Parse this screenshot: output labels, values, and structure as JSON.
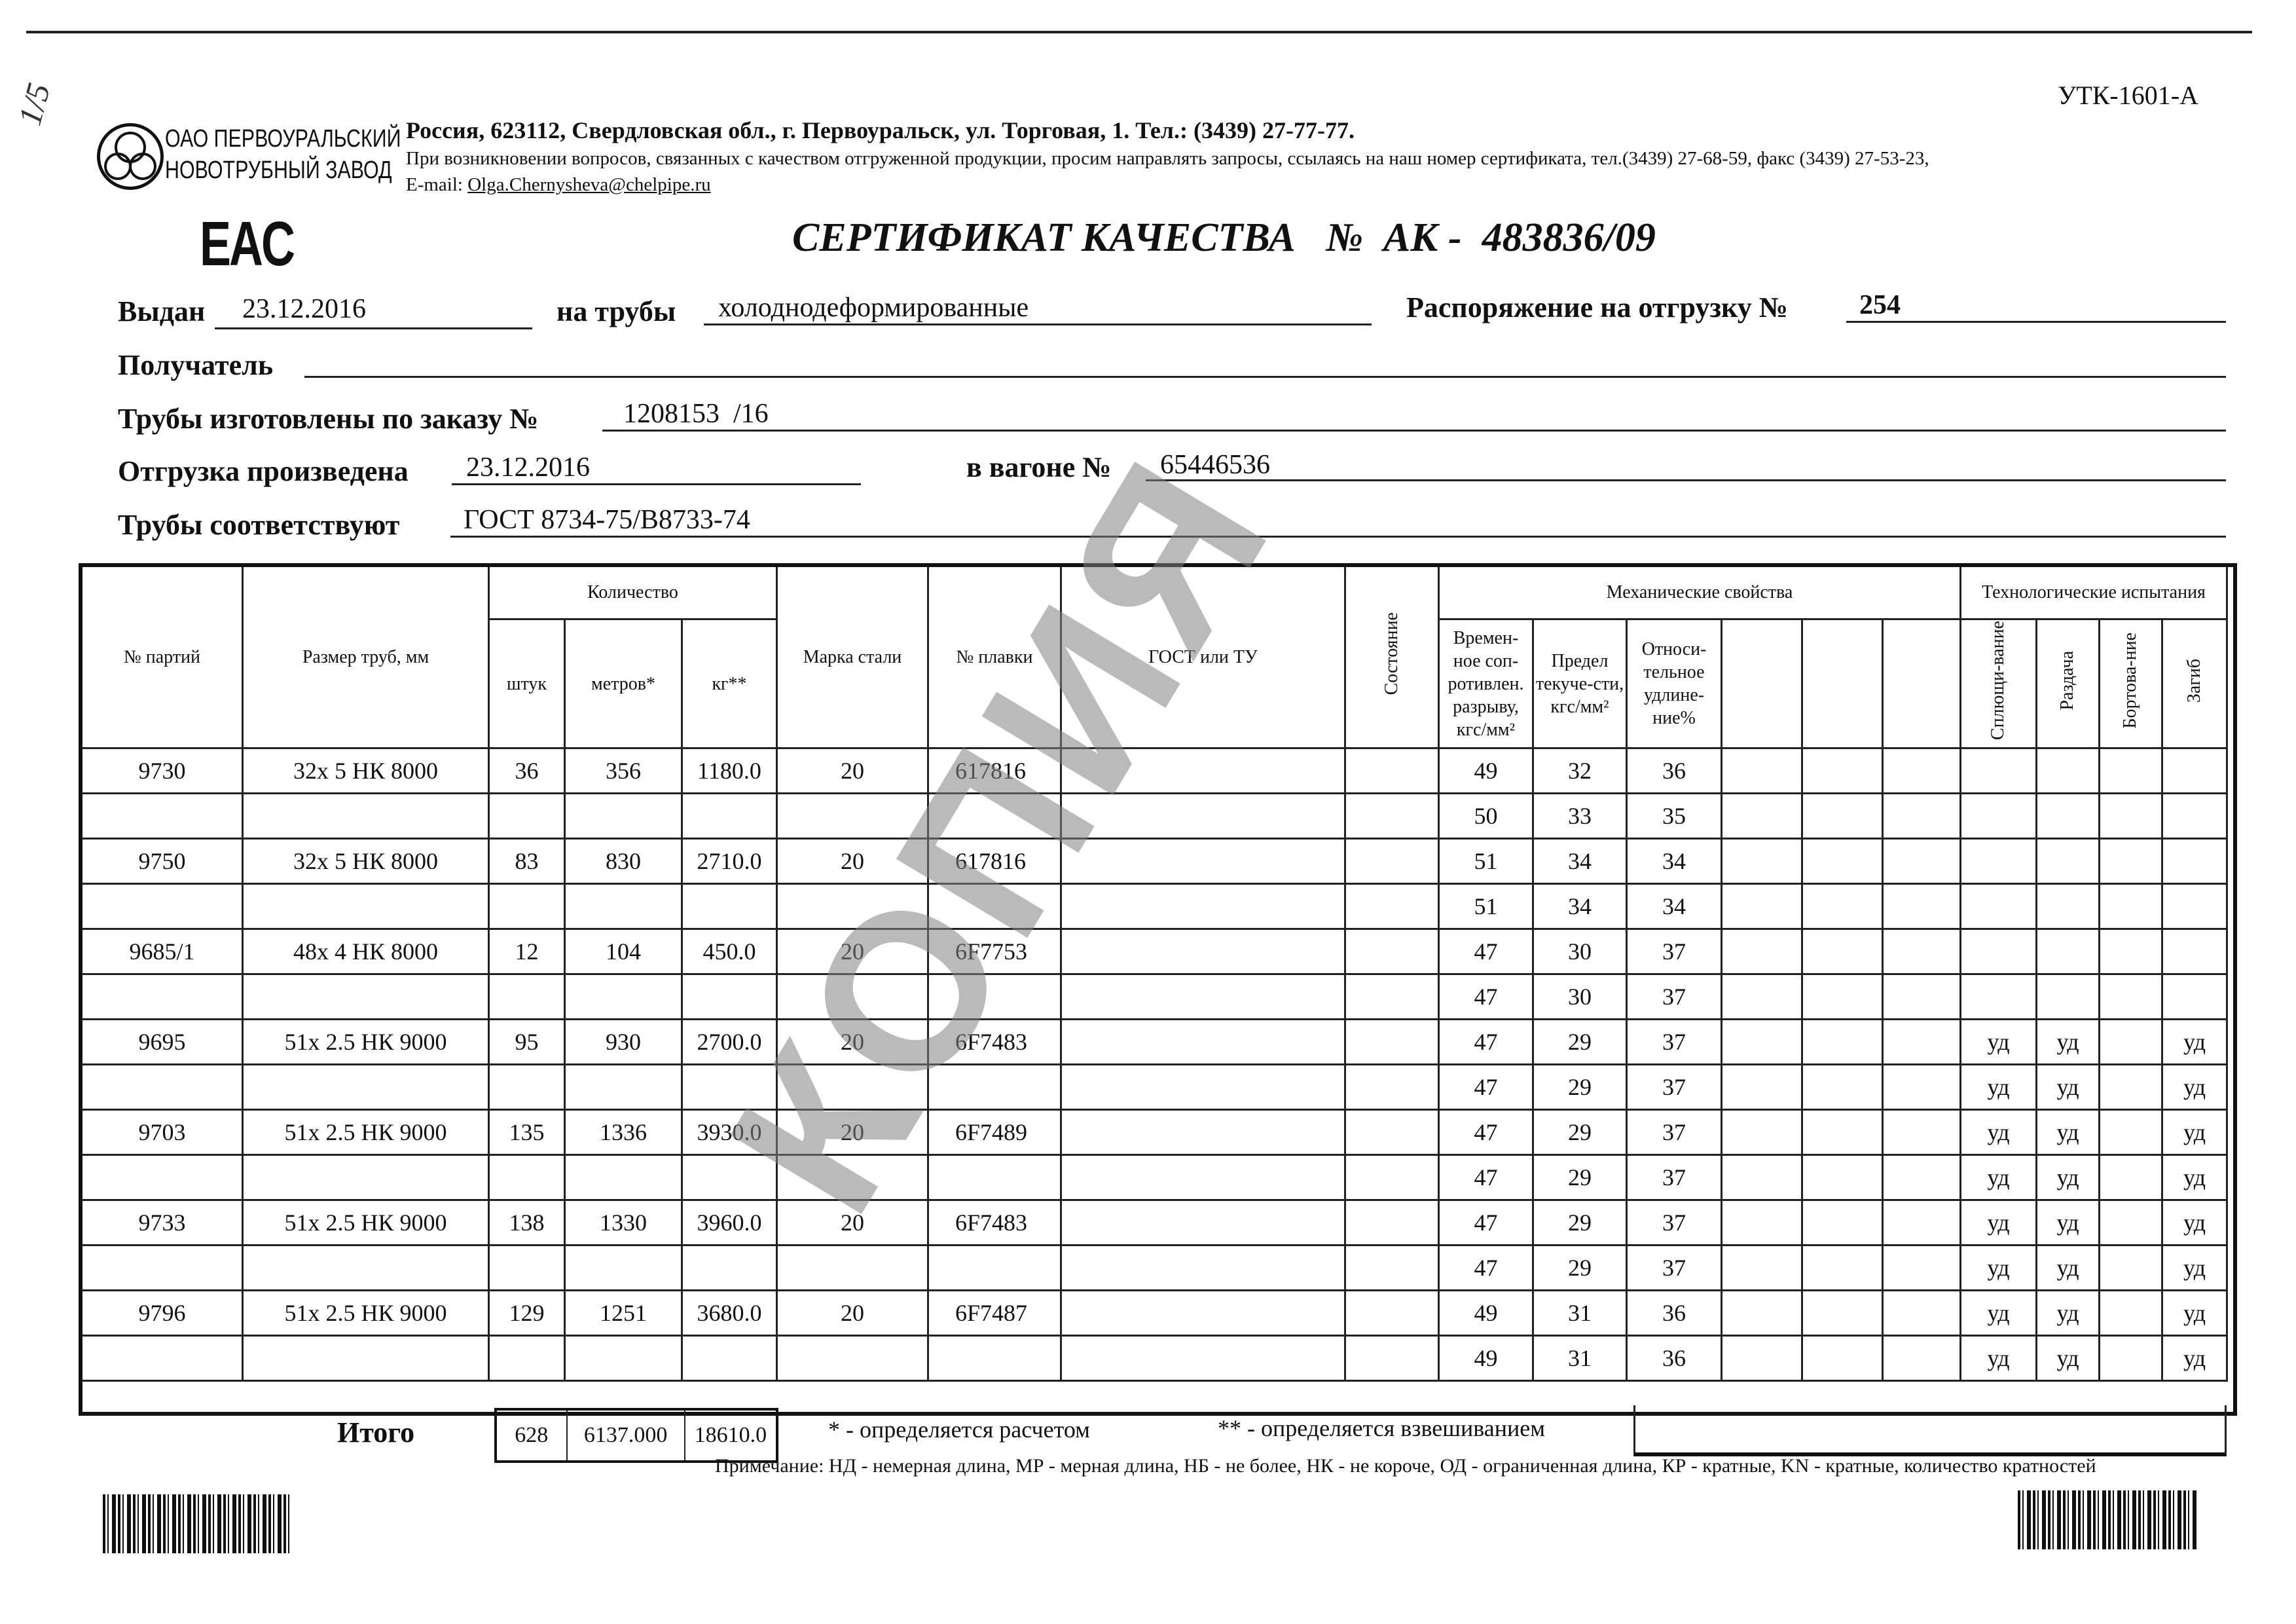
{
  "form_code": "УТК-1601-А",
  "handwritten_mark": "1/5",
  "company": {
    "logo_line1": "ОАО ПЕРВОУРАЛЬСКИЙ",
    "logo_line2": "НОВОТРУБНЫЙ ЗАВОД",
    "address": "Россия, 623112, Свердловская обл., г. Первоуральск, ул. Торговая, 1. Тел.: (3439) 27-77-77.",
    "contact_note": "При возникновении вопросов, связанных с качеством отгруженной продукции, просим направлять запросы, ссылаясь на наш номер сертификата, тел.(3439) 27-68-59, факс (3439) 27-53-23,",
    "email_label": "E-mail:",
    "email": "Olga.Chernysheva@chelpipe.ru"
  },
  "eac_mark": "EAC",
  "title": "СЕРТИФИКАТ КАЧЕСТВА   №  АК -  483836/09",
  "fields": {
    "issued_label": "Выдан",
    "issued": "23.12.2016",
    "pipes_label": "на трубы",
    "pipes": "холоднодеформированные",
    "order_label": "Распоряжение на отгрузку №",
    "order": "254",
    "recipient_label": "Получатель",
    "recipient": "",
    "made_label": "Трубы изготовлены по заказу №",
    "made": "1208153  /16",
    "shipped_label": "Отгрузка произведена",
    "shipped": "23.12.2016",
    "wagon_label": "в вагоне №",
    "wagon": "65446536",
    "conform_label": "Трубы соответствуют",
    "conform": "ГОСТ 8734-75/В8733-74"
  },
  "table": {
    "h": {
      "batch": "№ партий",
      "size": "Размер труб, мм",
      "qty": "Количество",
      "pcs": "штук",
      "m": "метров*",
      "kg": "кг**",
      "steel": "Марка стали",
      "heat": "№ плавки",
      "gost": "ГОСТ или ТУ",
      "state": "Состояние",
      "mech": "Механические свойства",
      "ts": "Времен-ное соп-ротивлен. разрыву, кгс/мм²",
      "ys": "Предел текуче-сти, кгс/мм²",
      "el": "Относи-тельное удлине-ние%",
      "tech": "Технологические испытания",
      "flat": "Сплющи-вание",
      "exp": "Раздача",
      "flange": "Бортова-ние",
      "bend": "Загиб"
    },
    "rows": [
      [
        "9730",
        "32х 5 НК 8000",
        "36",
        "356",
        "1180.0",
        "20",
        "617816",
        "49",
        "32",
        "36",
        "",
        "",
        ""
      ],
      [
        "",
        "",
        "",
        "",
        "",
        "",
        "",
        "50",
        "33",
        "35",
        "",
        "",
        ""
      ],
      [
        "9750",
        "32х 5 НК 8000",
        "83",
        "830",
        "2710.0",
        "20",
        "617816",
        "51",
        "34",
        "34",
        "",
        "",
        ""
      ],
      [
        "",
        "",
        "",
        "",
        "",
        "",
        "",
        "51",
        "34",
        "34",
        "",
        "",
        ""
      ],
      [
        "9685/1",
        "48х 4 НК 8000",
        "12",
        "104",
        "450.0",
        "20",
        "6F7753",
        "47",
        "30",
        "37",
        "",
        "",
        ""
      ],
      [
        "",
        "",
        "",
        "",
        "",
        "",
        "",
        "47",
        "30",
        "37",
        "",
        "",
        ""
      ],
      [
        "9695",
        "51х 2.5 НК 9000",
        "95",
        "930",
        "2700.0",
        "20",
        "6F7483",
        "47",
        "29",
        "37",
        "уд",
        "уд",
        "уд"
      ],
      [
        "",
        "",
        "",
        "",
        "",
        "",
        "",
        "47",
        "29",
        "37",
        "уд",
        "уд",
        "уд"
      ],
      [
        "9703",
        "51х 2.5 НК 9000",
        "135",
        "1336",
        "3930.0",
        "20",
        "6F7489",
        "47",
        "29",
        "37",
        "уд",
        "уд",
        "уд"
      ],
      [
        "",
        "",
        "",
        "",
        "",
        "",
        "",
        "47",
        "29",
        "37",
        "уд",
        "уд",
        "уд"
      ],
      [
        "9733",
        "51х 2.5 НК 9000",
        "138",
        "1330",
        "3960.0",
        "20",
        "6F7483",
        "47",
        "29",
        "37",
        "уд",
        "уд",
        "уд"
      ],
      [
        "",
        "",
        "",
        "",
        "",
        "",
        "",
        "47",
        "29",
        "37",
        "уд",
        "уд",
        "уд"
      ],
      [
        "9796",
        "51х 2.5 НК 9000",
        "129",
        "1251",
        "3680.0",
        "20",
        "6F7487",
        "49",
        "31",
        "36",
        "уд",
        "уд",
        "уд"
      ],
      [
        "",
        "",
        "",
        "",
        "",
        "",
        "",
        "49",
        "31",
        "36",
        "уд",
        "уд",
        "уд"
      ]
    ]
  },
  "totals": {
    "label": "Итого",
    "pcs": "628",
    "m": "6137.000",
    "kg": "18610.0"
  },
  "footnote1": "* - определяется расчетом",
  "footnote2": "** - определяется взвешиванием",
  "note": "Примечание: НД - немерная длина, МР - мерная длина, НБ - не более, НК - не короче, ОД - ограниченная длина, КР - кратные, KN - кратные, количество кратностей",
  "watermark": "КОПИЯ"
}
